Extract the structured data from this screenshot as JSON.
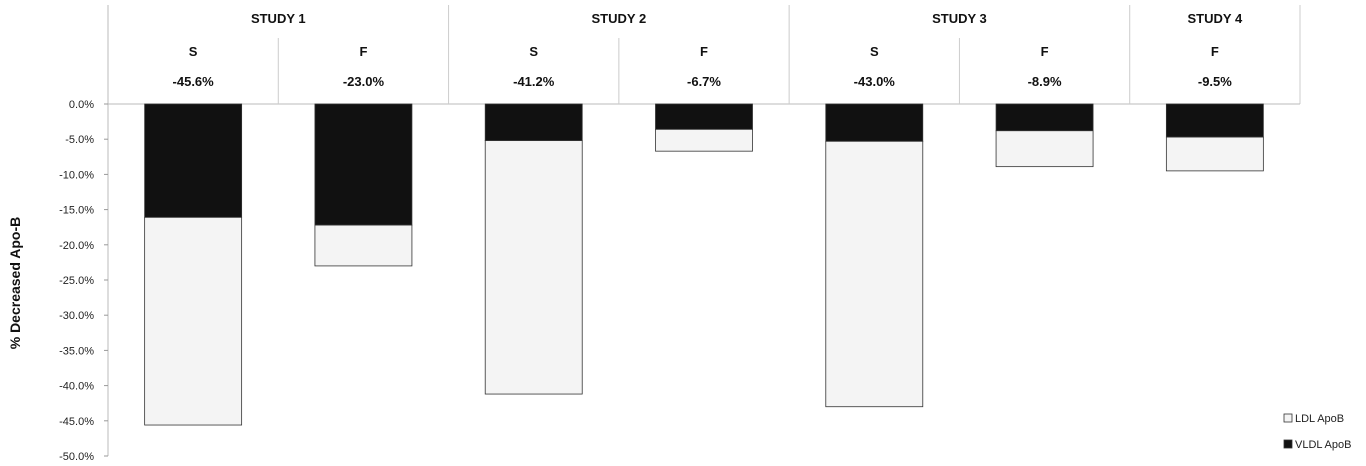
{
  "chart_data": {
    "type": "bar",
    "stacked": true,
    "ylabel": "% Decreased Apo-B",
    "ylim": [
      -50,
      0
    ],
    "yticks": [
      "0.0%",
      "-5.0%",
      "-10.0%",
      "-15.0%",
      "-20.0%",
      "-25.0%",
      "-30.0%",
      "-35.0%",
      "-40.0%",
      "-45.0%",
      "-50.0%"
    ],
    "grid": false,
    "legend_position": "bottom-right",
    "groups": [
      {
        "label": "STUDY 1",
        "span": 2
      },
      {
        "label": "STUDY 2",
        "span": 2
      },
      {
        "label": "STUDY 3",
        "span": 2
      },
      {
        "label": "STUDY 4",
        "span": 1
      }
    ],
    "categories": [
      "S",
      "F",
      "S",
      "F",
      "S",
      "F",
      "F"
    ],
    "totals": [
      "-45.6%",
      "-23.0%",
      "-41.2%",
      "-6.7%",
      "-43.0%",
      "-8.9%",
      "-9.5%"
    ],
    "series": [
      {
        "name": "VLDL ApoB",
        "color": "#111111",
        "values": [
          -16.1,
          -17.2,
          -5.2,
          -3.6,
          -5.3,
          -3.8,
          -4.7
        ]
      },
      {
        "name": "LDL ApoB",
        "color": "#f4f4f4",
        "values": [
          -29.5,
          -5.8,
          -36.0,
          -3.1,
          -37.7,
          -5.1,
          -4.8
        ]
      }
    ],
    "legend_order": [
      "LDL ApoB",
      "VLDL ApoB"
    ]
  }
}
